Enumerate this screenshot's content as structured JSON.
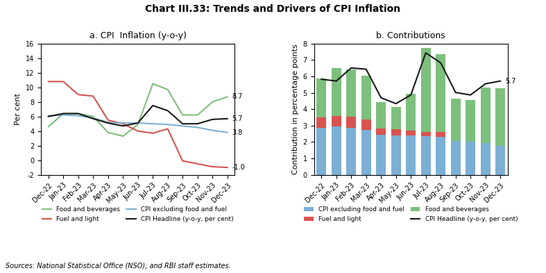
{
  "title": "Chart III.33: Trends and Drivers of CPI Inflation",
  "annotations": [
    "Sources: National Statistical Office (NSO); and RBI staff estimates."
  ],
  "chart_data": [
    {
      "type": "line",
      "title": "a. CPI  Inflation (y-o-y)",
      "ylabel": "Per cent",
      "categories": [
        "Dec-22",
        "Jan-23",
        "Feb-23",
        "Mar-23",
        "Apr-23",
        "May-23",
        "Jun-23",
        "Jul-23",
        "Aug-23",
        "Sep-23",
        "Oct-23",
        "Nov-23",
        "Dec-23"
      ],
      "series": [
        {
          "name": "Food and beverages",
          "color": "#7dbf7d",
          "values": [
            4.6,
            6.4,
            6.4,
            6.0,
            3.8,
            3.3,
            4.9,
            10.5,
            9.7,
            6.2,
            6.2,
            8.0,
            8.7
          ],
          "value_labels": [
            null,
            null,
            null,
            null,
            null,
            null,
            null,
            null,
            null,
            null,
            null,
            null,
            "8.7"
          ]
        },
        {
          "name": "Fuel and light",
          "color": "#d9534f",
          "values": [
            10.8,
            10.8,
            9.0,
            8.8,
            5.5,
            5.0,
            4.0,
            3.7,
            4.3,
            -0.1,
            -0.5,
            -0.9,
            -1.0
          ],
          "value_labels": [
            null,
            null,
            null,
            null,
            null,
            null,
            null,
            null,
            null,
            null,
            null,
            null,
            "-1.0"
          ]
        },
        {
          "name": "CPI excluding food and fuel",
          "color": "#7bafd4",
          "values": [
            6.1,
            6.2,
            6.1,
            5.8,
            5.2,
            5.1,
            5.1,
            5.0,
            4.9,
            4.7,
            4.5,
            4.1,
            3.8
          ],
          "value_labels": [
            null,
            null,
            null,
            null,
            null,
            null,
            null,
            null,
            null,
            null,
            null,
            null,
            "3.8"
          ]
        },
        {
          "name": "CPI Headline (y-o-y, per cent)",
          "color": "#1a1a1a",
          "values": [
            6.0,
            6.4,
            6.4,
            5.7,
            5.1,
            4.7,
            5.1,
            7.5,
            6.8,
            5.0,
            5.0,
            5.6,
            5.7
          ],
          "value_labels": [
            null,
            null,
            null,
            null,
            null,
            null,
            null,
            null,
            null,
            null,
            null,
            null,
            "5.7"
          ]
        }
      ],
      "ylim": [
        -2,
        16
      ],
      "yticks": [
        -2,
        0,
        2,
        4,
        6,
        8,
        10,
        12,
        14,
        16
      ],
      "legend": "below"
    },
    {
      "type": "bar",
      "stacked": true,
      "title": "b. Contributions",
      "ylabel": "Contribution in percentage points",
      "categories": [
        "Dec-22",
        "Jan-23",
        "Feb-23",
        "Mar-23",
        "Apr-23",
        "May-23",
        "Jun-23",
        "Jul-23",
        "Aug-23",
        "Sep-23",
        "Oct-23",
        "Nov-23",
        "Dec-23"
      ],
      "series": [
        {
          "name": "CPI excluding food and fuel",
          "color": "#7bafd4",
          "values": [
            2.85,
            2.93,
            2.88,
            2.73,
            2.44,
            2.4,
            2.4,
            2.35,
            2.3,
            2.06,
            2.0,
            1.93,
            1.75
          ]
        },
        {
          "name": "Fuel and light",
          "color": "#d9534f",
          "values": [
            0.65,
            0.65,
            0.68,
            0.65,
            0.4,
            0.38,
            0.3,
            0.28,
            0.32,
            0.0,
            0.0,
            0.0,
            0.0
          ]
        },
        {
          "name": "Food and beverages",
          "color": "#7dbf7d",
          "values": [
            2.38,
            2.94,
            2.87,
            2.65,
            1.61,
            1.37,
            2.25,
            5.1,
            4.72,
            2.57,
            2.57,
            3.4,
            3.55
          ]
        },
        {
          "name": "CPI Headline (y-o-y, per cent)",
          "type": "line",
          "color": "#1a1a1a",
          "values": [
            5.83,
            5.72,
            6.52,
            6.44,
            4.7,
            4.34,
            4.87,
            7.44,
            6.83,
            5.02,
            4.87,
            5.55,
            5.72
          ],
          "value_labels": [
            null,
            null,
            null,
            null,
            null,
            null,
            null,
            null,
            null,
            null,
            null,
            null,
            "5.7"
          ]
        }
      ],
      "ylim": [
        0,
        8
      ],
      "yticks": [
        0,
        1,
        2,
        3,
        4,
        5,
        6,
        7,
        8
      ],
      "legend": "below"
    }
  ]
}
